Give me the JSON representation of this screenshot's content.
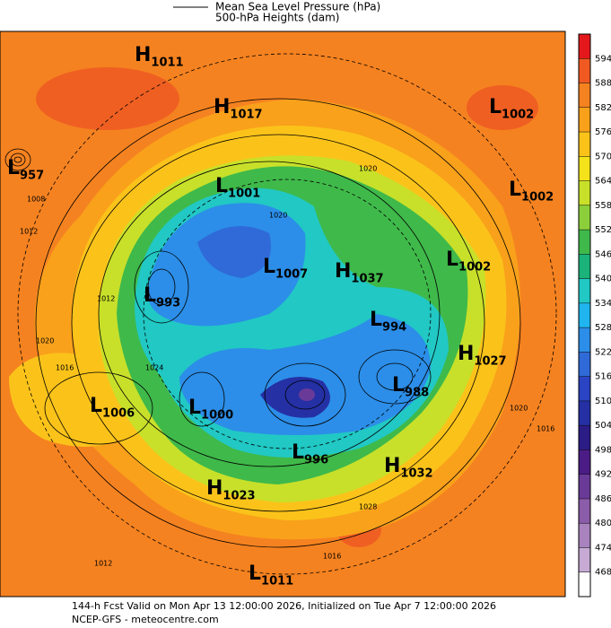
{
  "header": {
    "legend": [
      "Mean Sea Level Pressure (hPa)",
      "500-hPa Heights (dam)"
    ]
  },
  "colorbar": {
    "ticks": [
      594,
      588,
      582,
      576,
      570,
      564,
      558,
      552,
      546,
      540,
      534,
      528,
      522,
      516,
      510,
      504,
      498,
      492,
      486,
      480,
      474,
      468
    ]
  },
  "centers": [
    {
      "letter": "H",
      "value": 1011
    },
    {
      "letter": "H",
      "value": 1017
    },
    {
      "letter": "L",
      "value": 1002
    },
    {
      "letter": "L",
      "value": 957
    },
    {
      "letter": "L",
      "value": 1001
    },
    {
      "letter": "L",
      "value": 1002
    },
    {
      "letter": "L",
      "value": 1002
    },
    {
      "letter": "H",
      "value": 1037
    },
    {
      "letter": "L",
      "value": 1007
    },
    {
      "letter": "L",
      "value": 993
    },
    {
      "letter": "L",
      "value": 994
    },
    {
      "letter": "H",
      "value": 1027
    },
    {
      "letter": "L",
      "value": 988
    },
    {
      "letter": "L",
      "value": 1006
    },
    {
      "letter": "L",
      "value": 1000
    },
    {
      "letter": "L",
      "value": 996
    },
    {
      "letter": "H",
      "value": 1032
    },
    {
      "letter": "H",
      "value": 1023
    },
    {
      "letter": "L",
      "value": 1011
    }
  ],
  "isobar_labels": [
    1008,
    1012,
    1016,
    1020,
    1024,
    1012,
    1020,
    1016,
    1012,
    1020,
    1016,
    1020,
    1028
  ],
  "footer": [
    "144-h Fcst Valid on Mon Apr 13 12:00:00 2026, Initialized on Tue Apr  7 12:00:00 2026",
    "NCEP-GFS  - meteocentre.com"
  ]
}
